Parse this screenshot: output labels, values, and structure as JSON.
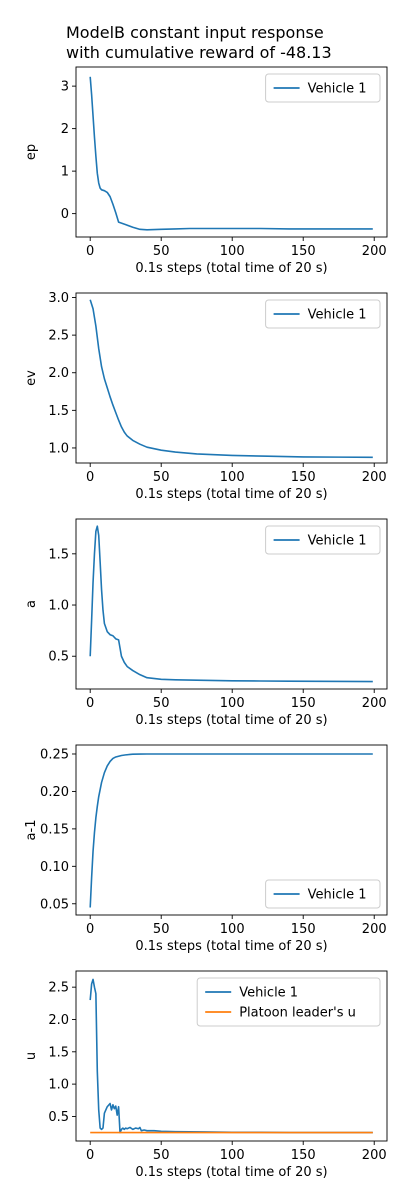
{
  "chart_data": {
    "title_lines": [
      "ModelB constant input response",
      "with cumulative reward of -48.13"
    ],
    "colors": {
      "vehicle": "#1f77b4",
      "leader": "#ff7f0e"
    },
    "panels": [
      {
        "type": "line",
        "xlabel": "0.1s steps (total time of 20 s)",
        "ylabel": "ep",
        "xlim": [
          -10,
          209
        ],
        "ylim": [
          -0.55,
          3.45
        ],
        "xticks": [
          0,
          50,
          100,
          150,
          200
        ],
        "yticks": [
          0,
          1,
          2,
          3
        ],
        "legend": "top-right",
        "series": [
          {
            "name": "Vehicle 1",
            "color": "#1f77b4",
            "x": [
              0,
              1,
              2,
              3,
              4,
              5,
              6,
              7,
              8,
              10,
              12,
              14,
              16,
              18,
              20,
              25,
              30,
              35,
              40,
              50,
              60,
              70,
              80,
              100,
              120,
              140,
              160,
              180,
              199
            ],
            "y": [
              3.22,
              2.8,
              2.3,
              1.8,
              1.35,
              0.95,
              0.72,
              0.6,
              0.56,
              0.54,
              0.5,
              0.4,
              0.22,
              0.02,
              -0.2,
              -0.26,
              -0.32,
              -0.37,
              -0.38,
              -0.37,
              -0.36,
              -0.35,
              -0.35,
              -0.35,
              -0.35,
              -0.36,
              -0.36,
              -0.36,
              -0.36
            ]
          }
        ]
      },
      {
        "type": "line",
        "xlabel": "0.1s steps (total time of 20 s)",
        "ylabel": "ev",
        "xlim": [
          -10,
          209
        ],
        "ylim": [
          0.8,
          3.06
        ],
        "xticks": [
          0,
          50,
          100,
          150,
          200
        ],
        "yticks": [
          1.0,
          1.5,
          2.0,
          2.5,
          3.0
        ],
        "legend": "top-right",
        "series": [
          {
            "name": "Vehicle 1",
            "color": "#1f77b4",
            "x": [
              0,
              2,
              4,
              6,
              8,
              10,
              12,
              14,
              16,
              18,
              20,
              22,
              24,
              26,
              30,
              35,
              40,
              50,
              60,
              75,
              100,
              125,
              150,
              175,
              199
            ],
            "y": [
              2.97,
              2.85,
              2.62,
              2.32,
              2.08,
              1.92,
              1.8,
              1.68,
              1.57,
              1.47,
              1.37,
              1.28,
              1.21,
              1.16,
              1.1,
              1.05,
              1.01,
              0.97,
              0.945,
              0.92,
              0.9,
              0.89,
              0.88,
              0.878,
              0.876
            ]
          }
        ]
      },
      {
        "type": "line",
        "xlabel": "0.1s steps (total time of 20 s)",
        "ylabel": "a",
        "xlim": [
          -10,
          209
        ],
        "ylim": [
          0.18,
          1.84
        ],
        "xticks": [
          0,
          50,
          100,
          150,
          200
        ],
        "yticks": [
          0.5,
          1.0,
          1.5
        ],
        "legend": "top-right",
        "series": [
          {
            "name": "Vehicle 1",
            "color": "#1f77b4",
            "x": [
              0,
              1,
              2,
              3,
              4,
              5,
              6,
              7,
              8,
              9,
              10,
              12,
              14,
              16,
              18,
              20,
              21,
              22,
              24,
              26,
              30,
              35,
              40,
              50,
              60,
              80,
              100,
              120,
              140,
              160,
              180,
              199
            ],
            "y": [
              0.5,
              0.85,
              1.22,
              1.5,
              1.72,
              1.77,
              1.68,
              1.42,
              1.15,
              0.95,
              0.82,
              0.74,
              0.71,
              0.7,
              0.67,
              0.66,
              0.58,
              0.5,
              0.44,
              0.4,
              0.36,
              0.32,
              0.29,
              0.275,
              0.27,
              0.265,
              0.26,
              0.258,
              0.256,
              0.255,
              0.254,
              0.253
            ]
          }
        ]
      },
      {
        "type": "line",
        "xlabel": "0.1s steps (total time of 20 s)",
        "ylabel": "a-1",
        "xlim": [
          -10,
          209
        ],
        "ylim": [
          0.035,
          0.262
        ],
        "xticks": [
          0,
          50,
          100,
          150,
          200
        ],
        "yticks": [
          0.05,
          0.1,
          0.15,
          0.2,
          0.25
        ],
        "legend": "bottom-right",
        "series": [
          {
            "name": "Vehicle 1",
            "color": "#1f77b4",
            "x": [
              0,
              1,
              2,
              3,
              4,
              5,
              6,
              8,
              10,
              12,
              14,
              16,
              18,
              20,
              22,
              25,
              28,
              30,
              35,
              40,
              50,
              60,
              80,
              100,
              150,
              199
            ],
            "y": [
              0.045,
              0.085,
              0.12,
              0.145,
              0.165,
              0.18,
              0.193,
              0.212,
              0.225,
              0.234,
              0.24,
              0.244,
              0.246,
              0.247,
              0.248,
              0.2488,
              0.2494,
              0.2497,
              0.2499,
              0.25,
              0.25,
              0.25,
              0.25,
              0.25,
              0.25,
              0.25
            ]
          }
        ]
      },
      {
        "type": "line",
        "xlabel": "0.1s steps (total time of 20 s)",
        "ylabel": "u",
        "xlim": [
          -10,
          209
        ],
        "ylim": [
          0.12,
          2.75
        ],
        "xticks": [
          0,
          50,
          100,
          150,
          200
        ],
        "yticks": [
          0.5,
          1.0,
          1.5,
          2.0,
          2.5
        ],
        "legend": "top-right",
        "series": [
          {
            "name": "Vehicle 1",
            "color": "#1f77b4",
            "x": [
              0,
              1,
              2,
              3,
              4,
              5,
              6,
              7,
              8,
              9,
              10,
              12,
              14,
              15,
              16,
              17,
              18,
              19,
              20,
              21,
              22,
              23,
              24,
              25,
              26,
              28,
              30,
              32,
              34,
              35,
              36,
              38,
              40,
              45,
              50,
              60,
              80,
              100,
              120,
              140,
              160,
              180,
              199
            ],
            "y": [
              2.3,
              2.55,
              2.62,
              2.5,
              2.4,
              1.2,
              0.6,
              0.32,
              0.3,
              0.32,
              0.55,
              0.65,
              0.7,
              0.6,
              0.68,
              0.62,
              0.66,
              0.52,
              0.65,
              0.25,
              0.3,
              0.32,
              0.3,
              0.32,
              0.31,
              0.33,
              0.3,
              0.32,
              0.31,
              0.33,
              0.28,
              0.29,
              0.28,
              0.28,
              0.27,
              0.265,
              0.26,
              0.255,
              0.255,
              0.25,
              0.25,
              0.25,
              0.25
            ]
          },
          {
            "name": "Platoon leader's u",
            "color": "#ff7f0e",
            "x": [
              0,
              199
            ],
            "y": [
              0.25,
              0.25
            ]
          }
        ]
      }
    ]
  }
}
